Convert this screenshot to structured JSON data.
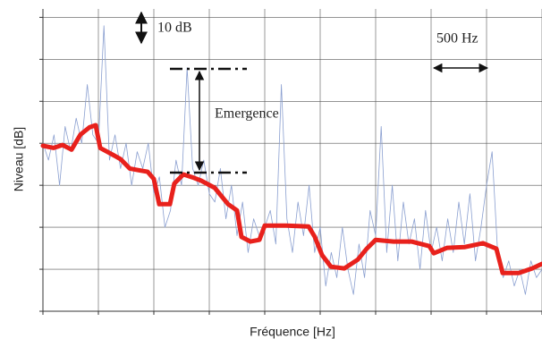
{
  "chart_data": {
    "type": "line",
    "xlabel": "Fréquence [Hz]",
    "ylabel": "Niveau [dB]",
    "annotations": [
      "10 dB",
      "500 Hz",
      "Emergence"
    ],
    "xlim": [
      0,
      4500
    ],
    "ylim": [
      0,
      72
    ],
    "xticks": [
      0,
      500,
      1000,
      1500,
      2000,
      2500,
      3000,
      3500,
      4000,
      4500
    ],
    "yticks": [
      0,
      10,
      20,
      30,
      40,
      50,
      60,
      70
    ],
    "grid": true,
    "series": [
      {
        "color": "#8a9fd0",
        "width": 0.8,
        "x": [
          0,
          50,
          100,
          150,
          200,
          250,
          300,
          350,
          400,
          450,
          500,
          550,
          600,
          650,
          700,
          750,
          800,
          850,
          900,
          950,
          1000,
          1050,
          1100,
          1150,
          1200,
          1250,
          1300,
          1350,
          1400,
          1450,
          1500,
          1550,
          1600,
          1650,
          1700,
          1750,
          1800,
          1850,
          1900,
          1950,
          2000,
          2050,
          2100,
          2150,
          2200,
          2250,
          2300,
          2350,
          2400,
          2450,
          2500,
          2550,
          2600,
          2650,
          2700,
          2750,
          2800,
          2850,
          2900,
          2950,
          3000,
          3050,
          3100,
          3150,
          3200,
          3250,
          3300,
          3350,
          3400,
          3450,
          3500,
          3550,
          3600,
          3650,
          3700,
          3750,
          3800,
          3850,
          3900,
          3950,
          4000,
          4050,
          4100,
          4150,
          4200,
          4250,
          4300,
          4350,
          4400,
          4450,
          4500
        ],
        "values": [
          40,
          36,
          42,
          30,
          44,
          38,
          46,
          40,
          54,
          42,
          40,
          68,
          36,
          42,
          34,
          40,
          30,
          38,
          34,
          40,
          28,
          32,
          20,
          24,
          36,
          30,
          58,
          34,
          30,
          36,
          28,
          26,
          34,
          22,
          30,
          18,
          26,
          14,
          22,
          18,
          20,
          24,
          16,
          54,
          22,
          14,
          26,
          18,
          30,
          14,
          20,
          6,
          14,
          8,
          20,
          10,
          4,
          16,
          8,
          24,
          18,
          44,
          14,
          30,
          12,
          26,
          16,
          22,
          10,
          24,
          14,
          20,
          12,
          22,
          14,
          26,
          16,
          28,
          12,
          20,
          30,
          38,
          14,
          8,
          12,
          6,
          10,
          4,
          12,
          8,
          10
        ]
      },
      {
        "color": "#e8211c",
        "width": 5,
        "x": [
          0,
          97,
          177,
          258,
          339,
          419,
          476,
          516,
          621,
          702,
          782,
          863,
          944,
          1000,
          1048,
          1145,
          1185,
          1266,
          1347,
          1427,
          1548,
          1669,
          1750,
          1790,
          1871,
          1952,
          2000,
          2194,
          2395,
          2452,
          2516,
          2597,
          2718,
          2839,
          2919,
          3000,
          3161,
          3323,
          3484,
          3524,
          3645,
          3806,
          3968,
          4089,
          4145,
          4290,
          4411,
          4500
        ],
        "values": [
          39.4,
          38.9,
          39.6,
          38.5,
          42.1,
          43.8,
          44.3,
          38.9,
          37.4,
          36.2,
          34.0,
          33.6,
          33.2,
          31.5,
          25.5,
          25.5,
          30.4,
          32.6,
          31.9,
          31.1,
          29.4,
          25.5,
          24.0,
          17.7,
          16.6,
          17.0,
          20.4,
          20.4,
          20.2,
          17.7,
          13.4,
          10.6,
          10.2,
          12.3,
          14.9,
          17.0,
          16.6,
          16.6,
          15.5,
          13.8,
          15.1,
          15.3,
          16.2,
          14.9,
          9.1,
          9.1,
          10.2,
          11.3
        ]
      }
    ]
  }
}
